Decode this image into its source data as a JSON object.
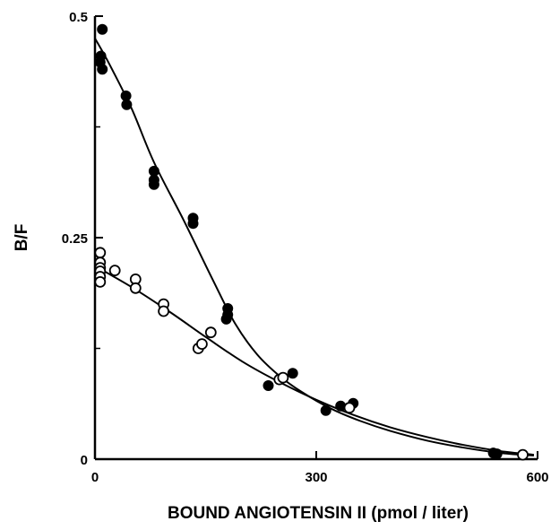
{
  "chart_data": {
    "type": "scatter",
    "title": "",
    "xlabel": "BOUND ANGIOTENSIN II (pmol / liter)",
    "ylabel": "B/F",
    "xlim": [
      0,
      600
    ],
    "ylim": [
      0,
      0.5
    ],
    "x_ticks": [
      0,
      300,
      600
    ],
    "x_tick_labels": [
      "0",
      "300",
      "600"
    ],
    "y_ticks": [
      0,
      0.25,
      0.5
    ],
    "y_tick_labels": [
      "0",
      "0.25",
      "0.5"
    ],
    "y_minor_ticks": [
      0.125,
      0.375
    ],
    "grid": false,
    "legend": "none",
    "series": [
      {
        "marker": "filled-circle",
        "color": "#000000",
        "points": [
          [
            10,
            0.485
          ],
          [
            8,
            0.455
          ],
          [
            7,
            0.448
          ],
          [
            10,
            0.44
          ],
          [
            42,
            0.41
          ],
          [
            43,
            0.4
          ],
          [
            80,
            0.325
          ],
          [
            80,
            0.315
          ],
          [
            80,
            0.31
          ],
          [
            133,
            0.272
          ],
          [
            133,
            0.266
          ],
          [
            180,
            0.17
          ],
          [
            180,
            0.163
          ],
          [
            178,
            0.158
          ],
          [
            235,
            0.083
          ],
          [
            268,
            0.097
          ],
          [
            313,
            0.055
          ],
          [
            333,
            0.06
          ],
          [
            350,
            0.063
          ],
          [
            540,
            0.007
          ],
          [
            545,
            0.006
          ]
        ],
        "curve": [
          [
            0,
            0.475
          ],
          [
            20,
            0.445
          ],
          [
            50,
            0.395
          ],
          [
            80,
            0.335
          ],
          [
            120,
            0.27
          ],
          [
            160,
            0.202
          ],
          [
            190,
            0.153
          ],
          [
            220,
            0.118
          ],
          [
            250,
            0.094
          ],
          [
            280,
            0.076
          ],
          [
            320,
            0.057
          ],
          [
            360,
            0.043
          ],
          [
            400,
            0.032
          ],
          [
            450,
            0.021
          ],
          [
            500,
            0.013
          ],
          [
            550,
            0.007
          ],
          [
            595,
            0.004
          ]
        ]
      },
      {
        "marker": "open-circle",
        "color": "#000000",
        "points": [
          [
            7,
            0.233
          ],
          [
            7,
            0.222
          ],
          [
            7,
            0.216
          ],
          [
            7,
            0.212
          ],
          [
            7,
            0.206
          ],
          [
            7,
            0.2
          ],
          [
            27,
            0.213
          ],
          [
            55,
            0.203
          ],
          [
            55,
            0.193
          ],
          [
            93,
            0.175
          ],
          [
            93,
            0.167
          ],
          [
            140,
            0.125
          ],
          [
            145,
            0.13
          ],
          [
            157,
            0.143
          ],
          [
            250,
            0.09
          ],
          [
            255,
            0.092
          ],
          [
            345,
            0.058
          ],
          [
            580,
            0.005
          ]
        ],
        "curve": [
          [
            0,
            0.218
          ],
          [
            50,
            0.194
          ],
          [
            100,
            0.167
          ],
          [
            150,
            0.138
          ],
          [
            200,
            0.11
          ],
          [
            250,
            0.087
          ],
          [
            300,
            0.067
          ],
          [
            350,
            0.05
          ],
          [
            400,
            0.036
          ],
          [
            450,
            0.025
          ],
          [
            500,
            0.016
          ],
          [
            550,
            0.009
          ],
          [
            595,
            0.005
          ]
        ]
      }
    ]
  }
}
